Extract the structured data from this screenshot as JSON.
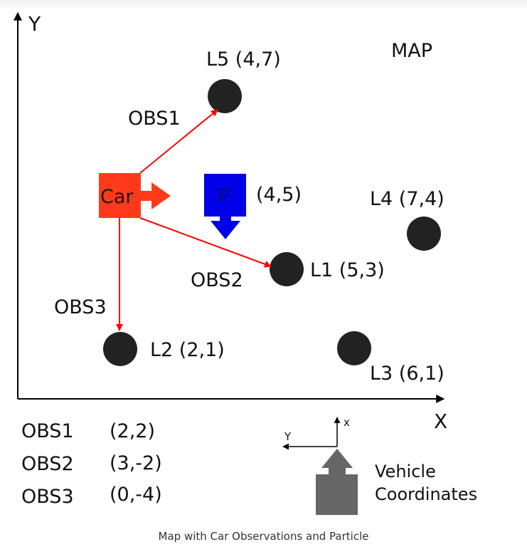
{
  "axes": {
    "x_label": "X",
    "y_label": "Y"
  },
  "map_label": "MAP",
  "car": {
    "label": "Car",
    "color": "#ff3a1a"
  },
  "particle": {
    "label": "P",
    "position_label": "(4,5)",
    "color": "#0000e6"
  },
  "landmarks": [
    {
      "id": "L1",
      "label": "L1 (5,3)"
    },
    {
      "id": "L2",
      "label": "L2 (2,1)"
    },
    {
      "id": "L3",
      "label": "L3 (6,1)"
    },
    {
      "id": "L4",
      "label": "L4 (7,4)"
    },
    {
      "id": "L5",
      "label": "L5 (4,7)"
    }
  ],
  "observations": [
    {
      "name": "OBS1",
      "value": "(2,2)"
    },
    {
      "name": "OBS2",
      "value": "(3,-2)"
    },
    {
      "name": "OBS3",
      "value": "(0,-4)"
    }
  ],
  "vehicle_coordinates": {
    "x_label": "x",
    "y_label": "Y",
    "line1": "Vehicle",
    "line2": "Coordinates",
    "color": "#666666"
  },
  "arrow_color": "#ff0000",
  "caption": "Map with Car Observations and Particle"
}
